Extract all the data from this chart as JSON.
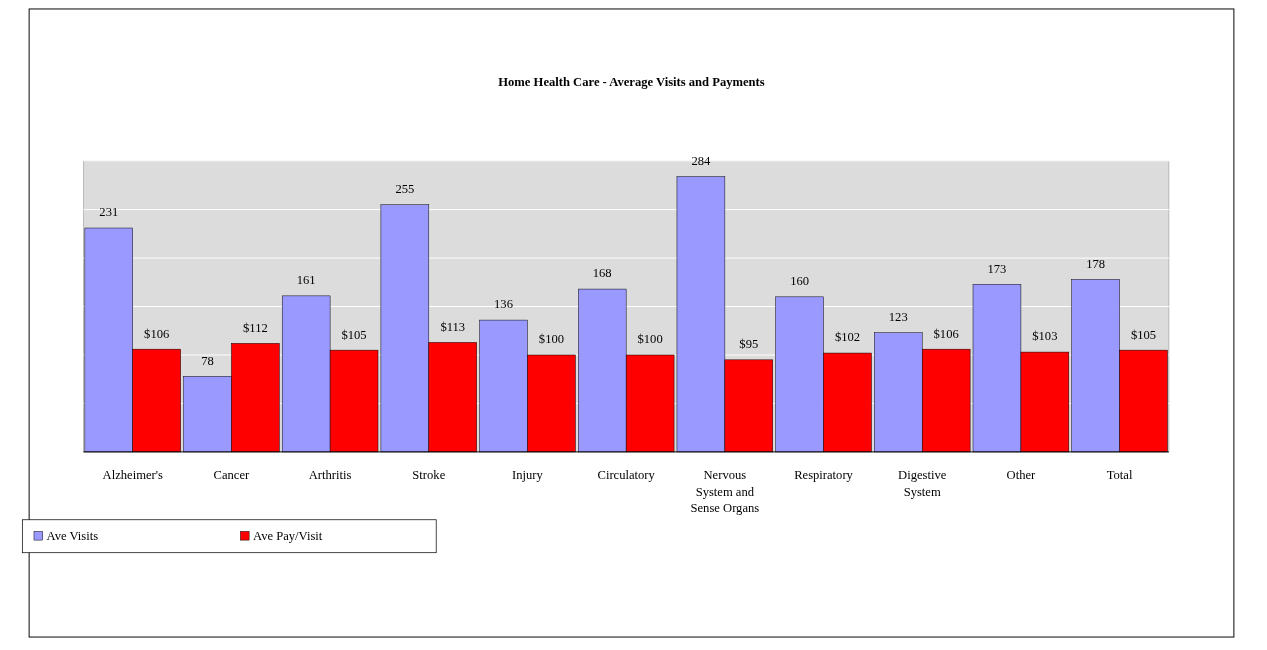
{
  "chart_data": {
    "type": "bar",
    "title": "Home Health Care - Average Visits and Payments",
    "categories": [
      "Alzheimer's",
      "Cancer",
      "Arthritis",
      "Stroke",
      "Injury",
      "Circulatory",
      "Nervous System and Sense Organs",
      "Respiratory",
      "Digestive System",
      "Other",
      "Total"
    ],
    "series": [
      {
        "name": "Ave Visits",
        "color": "#9999ff",
        "values": [
          231,
          78,
          161,
          255,
          136,
          168,
          284,
          160,
          123,
          173,
          178
        ],
        "value_labels": [
          "231",
          "78",
          "161",
          "255",
          "136",
          "168",
          "284",
          "160",
          "123",
          "173",
          "178"
        ]
      },
      {
        "name": "Ave Pay/Visit",
        "color": "#ff0000",
        "values": [
          106,
          112,
          105,
          113,
          100,
          100,
          95,
          102,
          106,
          103,
          105
        ],
        "value_labels": [
          "$106",
          "$112",
          "$105",
          "$113",
          "$100",
          "$100",
          "$95",
          "$102",
          "$106",
          "$103",
          "$105"
        ]
      }
    ],
    "ylim": [
      0,
      300
    ],
    "yticks": [
      {
        "value": 0,
        "label": null
      },
      {
        "value": 50,
        "label": null
      },
      {
        "value": 100,
        "label": null
      },
      {
        "value": 150,
        "label": null
      },
      {
        "value": 200,
        "label": null
      },
      {
        "value": 250,
        "label": null
      },
      {
        "value": 300,
        "label": null
      }
    ],
    "tick_labels": "x",
    "grid": "y",
    "legend": "bottom left"
  }
}
